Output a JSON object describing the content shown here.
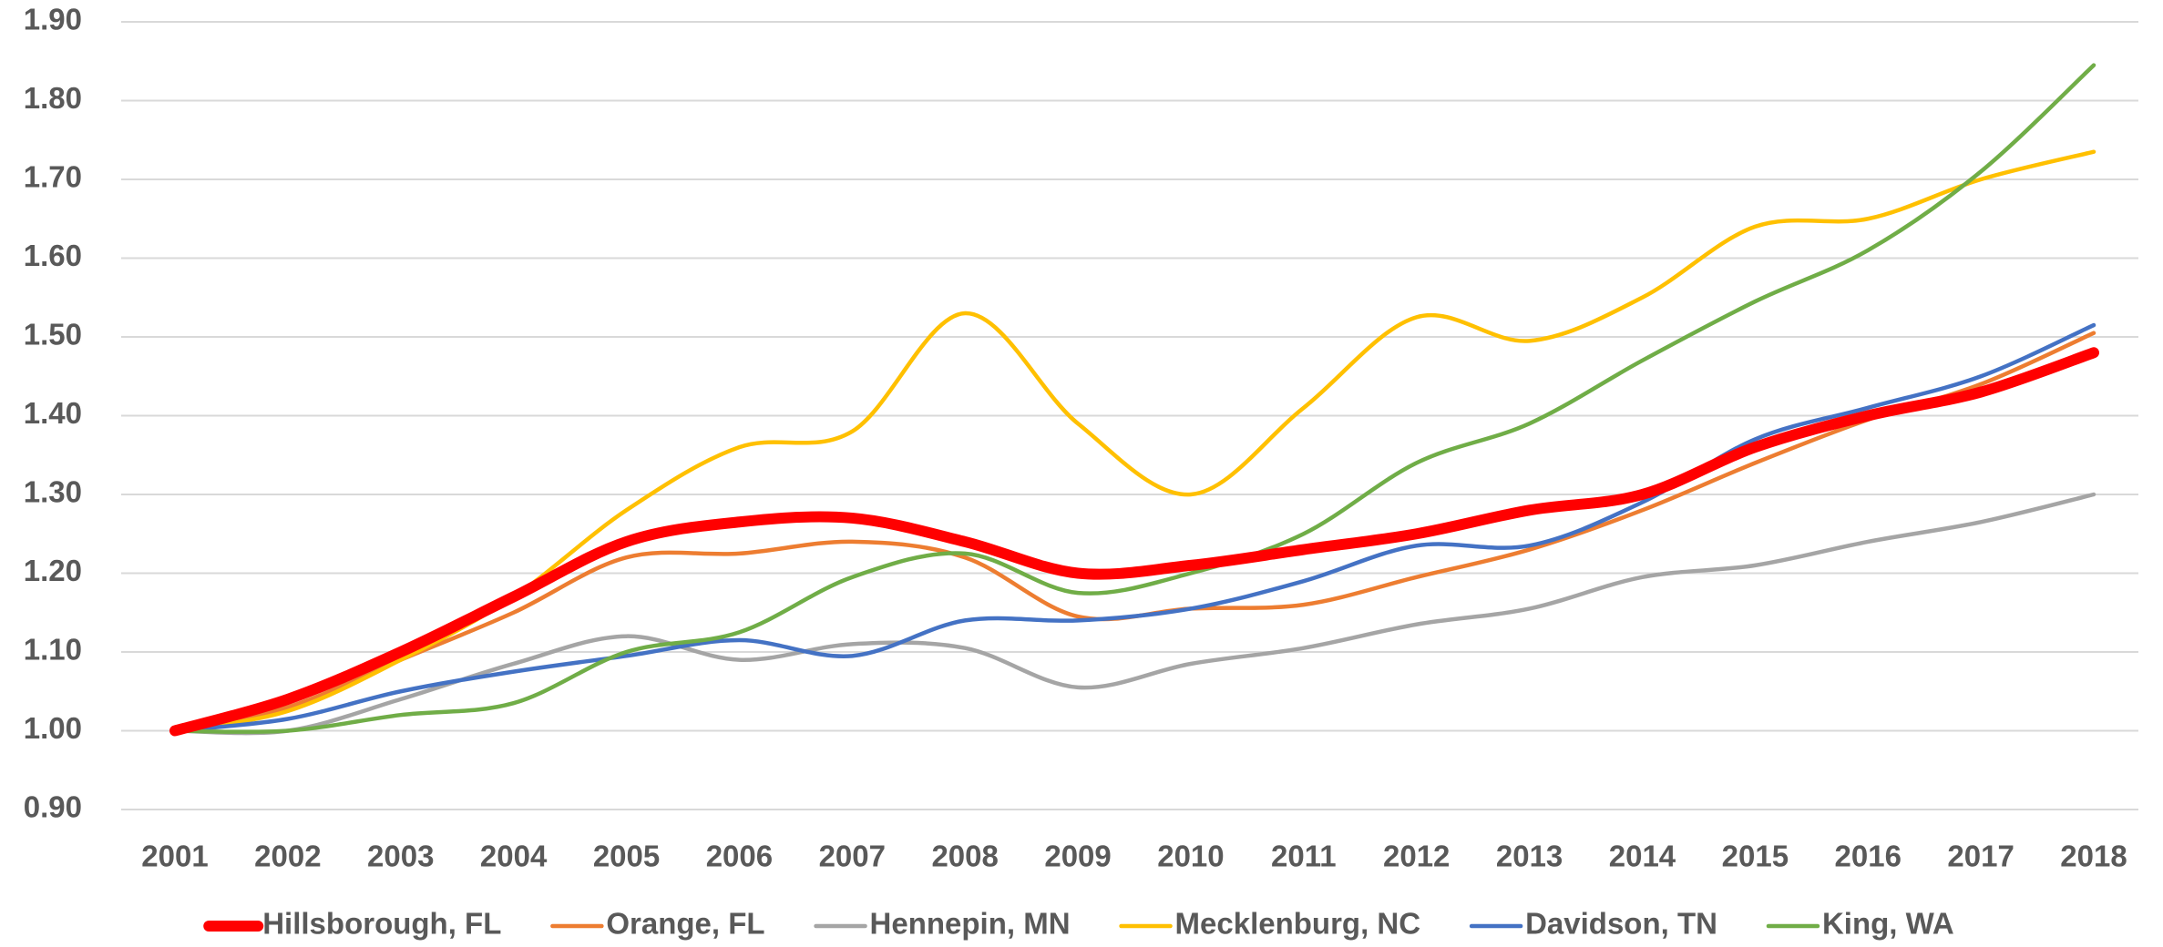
{
  "chart_data": {
    "type": "line",
    "smooth": true,
    "categories": [
      "2001",
      "2002",
      "2003",
      "2004",
      "2005",
      "2006",
      "2007",
      "2008",
      "2009",
      "2010",
      "2011",
      "2012",
      "2013",
      "2014",
      "2015",
      "2016",
      "2017",
      "2018"
    ],
    "series": [
      {
        "name": "Hillsborough, FL",
        "color": "#ff0000",
        "linewidth": 12,
        "values": [
          1.0,
          1.04,
          1.1,
          1.17,
          1.24,
          1.265,
          1.27,
          1.24,
          1.2,
          1.21,
          1.23,
          1.25,
          1.28,
          1.3,
          1.36,
          1.4,
          1.43,
          1.48
        ]
      },
      {
        "name": "Orange, FL",
        "color": "#ed7d31",
        "linewidth": 4.5,
        "values": [
          1.0,
          1.03,
          1.09,
          1.15,
          1.22,
          1.225,
          1.24,
          1.22,
          1.145,
          1.155,
          1.16,
          1.195,
          1.23,
          1.28,
          1.34,
          1.395,
          1.44,
          1.505
        ]
      },
      {
        "name": "Hennepin, MN",
        "color": "#a5a5a5",
        "linewidth": 4.5,
        "values": [
          1.0,
          1.0,
          1.04,
          1.085,
          1.12,
          1.09,
          1.11,
          1.105,
          1.055,
          1.085,
          1.105,
          1.135,
          1.155,
          1.195,
          1.21,
          1.24,
          1.265,
          1.3
        ]
      },
      {
        "name": "Mecklenburg, NC",
        "color": "#ffc000",
        "linewidth": 4.5,
        "values": [
          1.0,
          1.025,
          1.09,
          1.17,
          1.28,
          1.36,
          1.38,
          1.53,
          1.39,
          1.3,
          1.41,
          1.525,
          1.495,
          1.55,
          1.64,
          1.65,
          1.7,
          1.735
        ]
      },
      {
        "name": "Davidson, TN",
        "color": "#4472c4",
        "linewidth": 4.5,
        "values": [
          1.0,
          1.015,
          1.05,
          1.075,
          1.095,
          1.115,
          1.095,
          1.14,
          1.14,
          1.155,
          1.19,
          1.235,
          1.235,
          1.29,
          1.37,
          1.41,
          1.45,
          1.515
        ]
      },
      {
        "name": "King, WA",
        "color": "#70ad47",
        "linewidth": 4.5,
        "values": [
          1.0,
          1.0,
          1.02,
          1.035,
          1.1,
          1.125,
          1.195,
          1.225,
          1.175,
          1.2,
          1.25,
          1.34,
          1.39,
          1.47,
          1.545,
          1.61,
          1.71,
          1.845
        ]
      }
    ],
    "ylim": [
      0.9,
      1.9
    ],
    "yticks": [
      {
        "value": 0.9,
        "label": "0.90"
      },
      {
        "value": 1.0,
        "label": "1.00"
      },
      {
        "value": 1.1,
        "label": "1.10"
      },
      {
        "value": 1.2,
        "label": "1.20"
      },
      {
        "value": 1.3,
        "label": "1.30"
      },
      {
        "value": 1.4,
        "label": "1.40"
      },
      {
        "value": 1.5,
        "label": "1.50"
      },
      {
        "value": 1.6,
        "label": "1.60"
      },
      {
        "value": 1.7,
        "label": "1.70"
      },
      {
        "value": 1.8,
        "label": "1.80"
      },
      {
        "value": 1.9,
        "label": "1.90"
      }
    ],
    "grid": true,
    "legend": "bottom"
  }
}
